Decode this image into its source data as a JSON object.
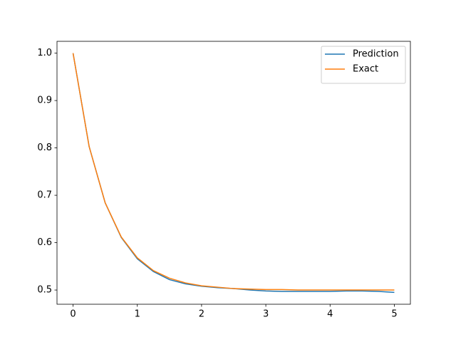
{
  "chart_data": {
    "type": "line",
    "x": [
      0,
      0.25,
      0.5,
      0.75,
      1,
      1.25,
      1.5,
      1.75,
      2,
      2.25,
      2.5,
      2.75,
      3,
      3.25,
      3.5,
      3.75,
      4,
      4.25,
      4.5,
      4.75,
      5
    ],
    "series": [
      {
        "name": "Prediction",
        "color": "#1f77b4",
        "values": [
          1.0,
          0.803,
          0.684,
          0.611,
          0.566,
          0.539,
          0.522,
          0.513,
          0.508,
          0.505,
          0.503,
          0.5,
          0.498,
          0.497,
          0.497,
          0.497,
          0.497,
          0.498,
          0.498,
          0.497,
          0.495
        ]
      },
      {
        "name": "Exact",
        "color": "#ff7f0e",
        "values": [
          1.0,
          0.803,
          0.684,
          0.612,
          0.568,
          0.541,
          0.525,
          0.515,
          0.509,
          0.506,
          0.503,
          0.502,
          0.501,
          0.501,
          0.5,
          0.5,
          0.5,
          0.5,
          0.5,
          0.5,
          0.5
        ]
      }
    ],
    "xlim": [
      -0.25,
      5.25
    ],
    "ylim": [
      0.47,
      1.025
    ],
    "xticks": [
      0,
      1,
      2,
      3,
      4,
      5
    ],
    "yticks": [
      {
        "value": 0.5,
        "label": "0.5"
      },
      0.6,
      0.7,
      0.8,
      0.9,
      {
        "value": 1.0,
        "label": "1.0"
      }
    ],
    "grid": false,
    "legend": "upper right"
  }
}
